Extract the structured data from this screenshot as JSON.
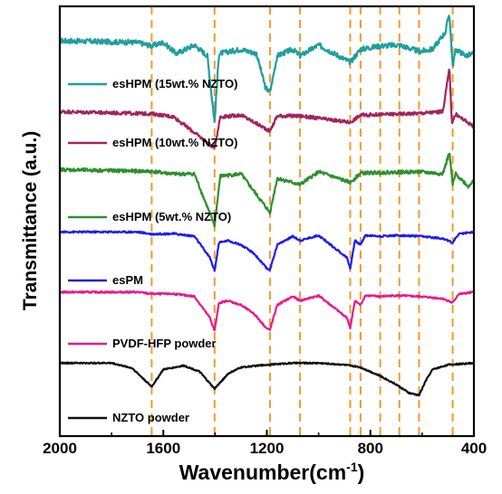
{
  "chart_data": {
    "type": "line",
    "title": "",
    "xlabel": "Wavenumber(cm",
    "xlabel_sup": "-1",
    "xlabel_close": ")",
    "ylabel": "Transmittance (a.u.)",
    "xlim": [
      2000,
      400
    ],
    "x_reversed": true,
    "x_ticks": [
      2000,
      1600,
      1200,
      800,
      400
    ],
    "x_tick_labels": [
      "2000",
      "1600",
      "1200",
      "800",
      "400"
    ],
    "y_ticks_shown": false,
    "reference_lines": {
      "style": "dashed",
      "color": "#F39A2B",
      "x": [
        1645,
        1402,
        1188,
        1072,
        878,
        838,
        762,
        688,
        612,
        482
      ]
    },
    "series": [
      {
        "name": "esHPM (15wt.% NZTO)",
        "color": "#1F9E9E",
        "baseline": 0.92,
        "noise": 0.006,
        "points": [
          [
            2000,
            0.0
          ],
          [
            1700,
            -0.004
          ],
          [
            1645,
            -0.012
          ],
          [
            1600,
            -0.004
          ],
          [
            1550,
            -0.03
          ],
          [
            1480,
            -0.01
          ],
          [
            1430,
            -0.035
          ],
          [
            1402,
            -0.19
          ],
          [
            1385,
            -0.03
          ],
          [
            1300,
            -0.02
          ],
          [
            1240,
            -0.03
          ],
          [
            1205,
            -0.11
          ],
          [
            1188,
            -0.12
          ],
          [
            1160,
            -0.035
          ],
          [
            1100,
            -0.02
          ],
          [
            1072,
            -0.035
          ],
          [
            1000,
            -0.01
          ],
          [
            878,
            -0.05
          ],
          [
            838,
            -0.02
          ],
          [
            762,
            -0.012
          ],
          [
            688,
            -0.01
          ],
          [
            612,
            -0.025
          ],
          [
            560,
            -0.02
          ],
          [
            510,
            0.02
          ],
          [
            495,
            0.065
          ],
          [
            482,
            -0.06
          ],
          [
            470,
            -0.02
          ],
          [
            430,
            -0.035
          ],
          [
            400,
            -0.03
          ]
        ]
      },
      {
        "name": "esHPM (10wt.% NZTO)",
        "color": "#A0245F",
        "baseline": 0.755,
        "noise": 0.004,
        "points": [
          [
            2000,
            0.0
          ],
          [
            1645,
            -0.005
          ],
          [
            1560,
            -0.012
          ],
          [
            1402,
            -0.085
          ],
          [
            1380,
            -0.012
          ],
          [
            1300,
            -0.008
          ],
          [
            1188,
            -0.045
          ],
          [
            1160,
            -0.01
          ],
          [
            1072,
            -0.01
          ],
          [
            878,
            -0.025
          ],
          [
            838,
            -0.008
          ],
          [
            612,
            -0.004
          ],
          [
            520,
            0.0
          ],
          [
            495,
            0.1
          ],
          [
            485,
            -0.025
          ],
          [
            470,
            -0.006
          ],
          [
            400,
            -0.035
          ]
        ]
      },
      {
        "name": "esHPM (5wt.% NZTO)",
        "color": "#2F8F2F",
        "baseline": 0.62,
        "noise": 0.004,
        "points": [
          [
            2000,
            0.0
          ],
          [
            1645,
            -0.004
          ],
          [
            1560,
            -0.01
          ],
          [
            1480,
            -0.01
          ],
          [
            1402,
            -0.13
          ],
          [
            1380,
            -0.015
          ],
          [
            1300,
            -0.01
          ],
          [
            1188,
            -0.1
          ],
          [
            1160,
            -0.02
          ],
          [
            1072,
            -0.035
          ],
          [
            1000,
            -0.005
          ],
          [
            878,
            -0.03
          ],
          [
            838,
            -0.008
          ],
          [
            700,
            -0.006
          ],
          [
            612,
            -0.005
          ],
          [
            520,
            -0.01
          ],
          [
            495,
            0.04
          ],
          [
            482,
            -0.035
          ],
          [
            470,
            -0.01
          ],
          [
            420,
            -0.04
          ],
          [
            400,
            -0.02
          ]
        ]
      },
      {
        "name": "esPM",
        "color": "#1C1CF0",
        "baseline": 0.475,
        "noise": 0.002,
        "points": [
          [
            2000,
            0.0
          ],
          [
            1700,
            0.0
          ],
          [
            1645,
            -0.005
          ],
          [
            1560,
            -0.004
          ],
          [
            1480,
            -0.01
          ],
          [
            1420,
            -0.06
          ],
          [
            1402,
            -0.09
          ],
          [
            1385,
            -0.025
          ],
          [
            1350,
            -0.02
          ],
          [
            1300,
            -0.03
          ],
          [
            1250,
            -0.05
          ],
          [
            1200,
            -0.085
          ],
          [
            1188,
            -0.088
          ],
          [
            1160,
            -0.03
          ],
          [
            1100,
            -0.01
          ],
          [
            1072,
            -0.02
          ],
          [
            1000,
            -0.008
          ],
          [
            890,
            -0.06
          ],
          [
            878,
            -0.085
          ],
          [
            860,
            -0.02
          ],
          [
            838,
            -0.03
          ],
          [
            820,
            -0.008
          ],
          [
            762,
            -0.01
          ],
          [
            700,
            -0.008
          ],
          [
            612,
            -0.01
          ],
          [
            520,
            -0.015
          ],
          [
            482,
            -0.025
          ],
          [
            460,
            -0.005
          ],
          [
            400,
            0.0
          ]
        ]
      },
      {
        "name": "PVDF-HFP powder",
        "color": "#E8198C",
        "baseline": 0.335,
        "noise": 0.002,
        "points": [
          [
            2000,
            0.0
          ],
          [
            1700,
            0.0
          ],
          [
            1645,
            -0.004
          ],
          [
            1560,
            -0.004
          ],
          [
            1480,
            -0.01
          ],
          [
            1420,
            -0.06
          ],
          [
            1402,
            -0.09
          ],
          [
            1385,
            -0.025
          ],
          [
            1350,
            -0.02
          ],
          [
            1300,
            -0.03
          ],
          [
            1250,
            -0.05
          ],
          [
            1200,
            -0.085
          ],
          [
            1188,
            -0.088
          ],
          [
            1160,
            -0.03
          ],
          [
            1100,
            -0.01
          ],
          [
            1072,
            -0.02
          ],
          [
            1000,
            -0.008
          ],
          [
            890,
            -0.06
          ],
          [
            878,
            -0.085
          ],
          [
            860,
            -0.02
          ],
          [
            838,
            -0.03
          ],
          [
            820,
            -0.008
          ],
          [
            762,
            -0.01
          ],
          [
            700,
            -0.008
          ],
          [
            612,
            -0.01
          ],
          [
            520,
            -0.015
          ],
          [
            482,
            -0.025
          ],
          [
            460,
            -0.005
          ],
          [
            400,
            0.0
          ]
        ]
      },
      {
        "name": "NZTO powder",
        "color": "#111111",
        "baseline": 0.17,
        "noise": 0.0015,
        "points": [
          [
            2000,
            0.0
          ],
          [
            1800,
            0.0
          ],
          [
            1720,
            -0.012
          ],
          [
            1645,
            -0.055
          ],
          [
            1600,
            -0.015
          ],
          [
            1520,
            -0.006
          ],
          [
            1460,
            -0.02
          ],
          [
            1402,
            -0.06
          ],
          [
            1350,
            -0.025
          ],
          [
            1300,
            -0.01
          ],
          [
            1200,
            -0.004
          ],
          [
            1100,
            0.0
          ],
          [
            1000,
            0.0
          ],
          [
            900,
            -0.004
          ],
          [
            838,
            -0.01
          ],
          [
            762,
            -0.03
          ],
          [
            700,
            -0.05
          ],
          [
            650,
            -0.07
          ],
          [
            612,
            -0.075
          ],
          [
            585,
            -0.04
          ],
          [
            560,
            -0.015
          ],
          [
            500,
            -0.004
          ],
          [
            400,
            0.0
          ]
        ]
      }
    ]
  }
}
